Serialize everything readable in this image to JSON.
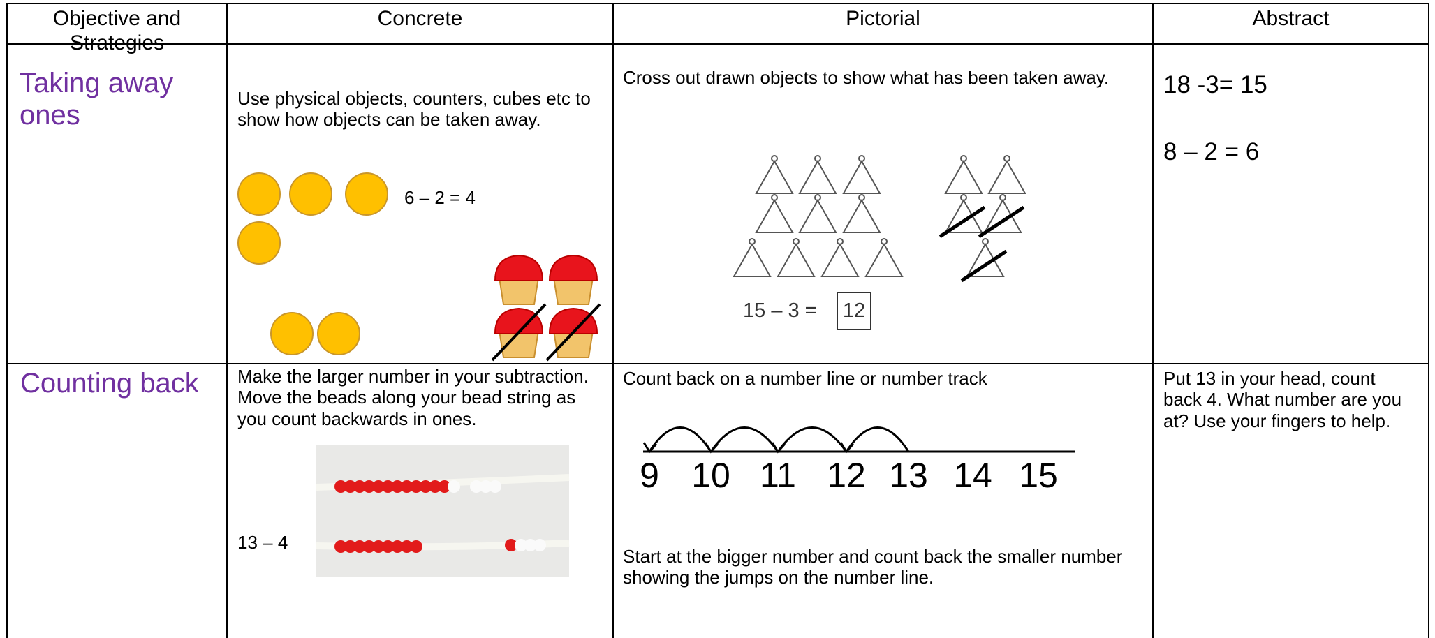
{
  "table": {
    "headers": [
      "Objective and Strategies",
      "Concrete",
      "Pictorial",
      "Abstract"
    ],
    "rows": [
      {
        "objective": "Taking away ones",
        "concrete": "Use physical objects, counters, cubes etc to show how objects can be taken away.",
        "concrete_equation": "6 – 2 = 4",
        "pictorial": "Cross out drawn objects to show what has been taken away.",
        "pictorial_equation": "15 – 3 =",
        "pictorial_answer": "12",
        "abstract": [
          "18 -3= 15",
          "8 – 2 = 6"
        ]
      },
      {
        "objective": "Counting back",
        "concrete": "Make the larger number in your subtraction. Move the beads along your bead string as you count backwards in ones.",
        "concrete_equation": "13 – 4",
        "pictorial": "Count back on a number line or number track",
        "number_line": [
          "9",
          "10",
          "11",
          "12",
          "13",
          "14",
          "15"
        ],
        "pictorial_note": "Start at the bigger number and count back the smaller number showing the jumps on the number line.",
        "abstract": "Put 13 in your head, count back 4. What number are you at? Use your fingers to help."
      }
    ]
  }
}
